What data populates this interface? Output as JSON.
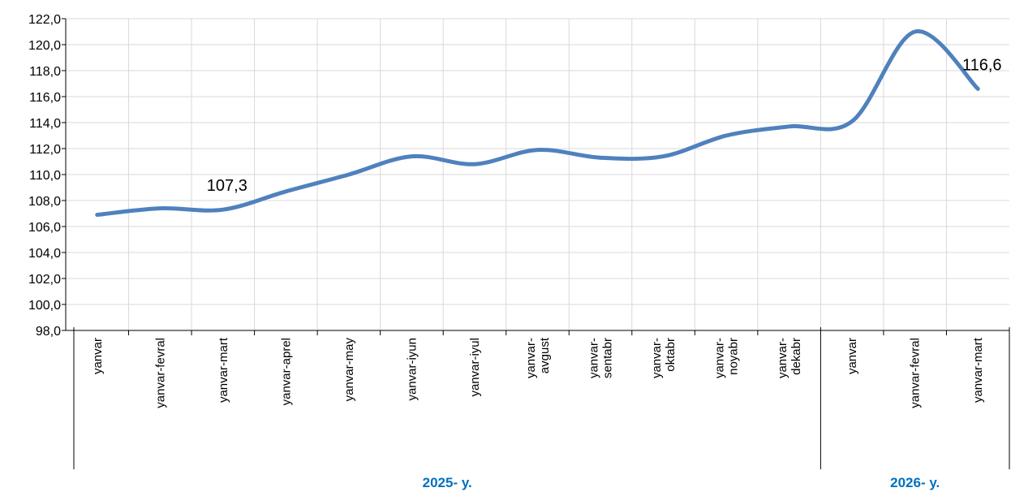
{
  "chart_data": {
    "type": "line",
    "categories": [
      "yanvar",
      "yanvar-fevral",
      "yanvar-mart",
      "yanvar-aprel",
      "yanvar-may",
      "yanvar-iyun",
      "yanvar-iyul",
      "yanvar-avgust",
      "yanvar-sentabr",
      "yanvar-oktabr",
      "yanvar-noyabr",
      "yanvar-dekabr",
      "yanvar",
      "yanvar-fevral",
      "yanvar-mart"
    ],
    "category_label_lines": [
      [
        "yanvar"
      ],
      [
        "yanvar-fevral"
      ],
      [
        "yanvar-mart"
      ],
      [
        "yanvar-aprel"
      ],
      [
        "yanvar-may"
      ],
      [
        "yanvar-iyun"
      ],
      [
        "yanvar-iyul"
      ],
      [
        "yanvar-",
        "avgust"
      ],
      [
        "yanvar-",
        "sentabr"
      ],
      [
        "yanvar-",
        "oktabr"
      ],
      [
        "yanvar-",
        "noyabr"
      ],
      [
        "yanvar-",
        "dekabr"
      ],
      [
        "yanvar"
      ],
      [
        "yanvar-fevral"
      ],
      [
        "yanvar-mart"
      ]
    ],
    "groups": [
      {
        "label": "2025- y.",
        "start": 0,
        "end": 11
      },
      {
        "label": "2026- y.",
        "start": 12,
        "end": 14
      }
    ],
    "series": [
      {
        "values": [
          106.9,
          107.4,
          107.3,
          108.7,
          110.0,
          111.4,
          110.8,
          111.9,
          111.3,
          111.4,
          113.0,
          113.7,
          114.1,
          121.0,
          116.6
        ]
      }
    ],
    "data_labels": [
      {
        "index": 2,
        "text": "107,3"
      },
      {
        "index": 14,
        "text": "116,6"
      }
    ],
    "ylim": [
      98,
      122
    ],
    "ytick_step": 2,
    "ytick_labels": [
      "98,0",
      "100,0",
      "102,0",
      "104,0",
      "106,0",
      "108,0",
      "110,0",
      "112,0",
      "114,0",
      "116,0",
      "118,0",
      "120,0",
      "122,0"
    ],
    "grid": true,
    "legend": "none",
    "title": "",
    "xlabel": "",
    "ylabel": "",
    "colors": {
      "line": "#4f81bd",
      "grid": "#d9d9d9",
      "group_label": "#0070c0",
      "axis": "#000000"
    }
  }
}
